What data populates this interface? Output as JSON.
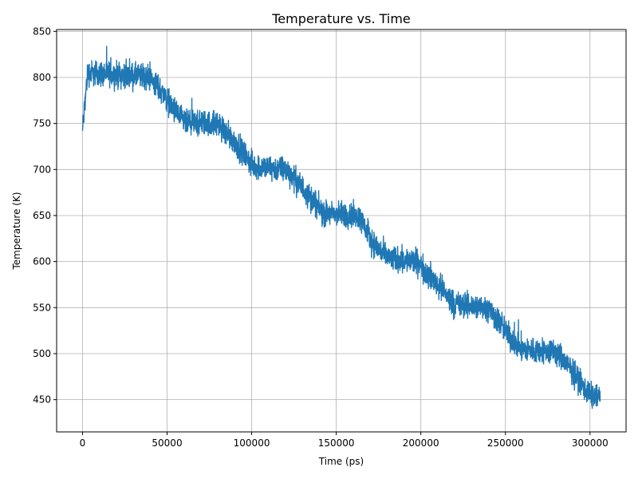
{
  "chart_data": {
    "type": "line",
    "title": "Temperature vs. Time",
    "xlabel": "Time (ps)",
    "ylabel": "Temperature (K)",
    "xlim": [
      -15300,
      321300
    ],
    "ylim": [
      415,
      852
    ],
    "grid": true,
    "x_ticks": [
      0,
      50000,
      100000,
      150000,
      200000,
      250000,
      300000
    ],
    "x_tick_labels": [
      "0",
      "50000",
      "100000",
      "150000",
      "200000",
      "250000",
      "300000"
    ],
    "y_ticks": [
      450,
      500,
      550,
      600,
      650,
      700,
      750,
      800,
      850
    ],
    "y_tick_labels": [
      "450",
      "500",
      "550",
      "600",
      "650",
      "700",
      "750",
      "800",
      "850"
    ],
    "series_color": "#1f77b4",
    "series": [
      {
        "mean_profile": {
          "x": [
            0,
            3000,
            20000,
            40000,
            42000,
            47000,
            50000,
            55000,
            60000,
            62000,
            80000,
            82000,
            90000,
            95000,
            100000,
            102000,
            120000,
            123000,
            130000,
            138000,
            140000,
            143000,
            162000,
            165000,
            170000,
            175000,
            180000,
            182000,
            198000,
            200000,
            210000,
            218000,
            220000,
            222000,
            240000,
            242000,
            250000,
            255000,
            260000,
            262000,
            278000,
            282000,
            290000,
            297000,
            300000,
            306000
          ],
          "y": [
            742,
            805,
            803,
            800,
            795,
            785,
            775,
            762,
            752,
            750,
            750,
            745,
            730,
            718,
            706,
            703,
            700,
            695,
            680,
            663,
            657,
            652,
            650,
            645,
            625,
            613,
            605,
            603,
            600,
            595,
            575,
            558,
            553,
            553,
            550,
            545,
            525,
            512,
            505,
            504,
            502,
            498,
            480,
            462,
            455,
            452
          ],
          "noise_amplitude_K": 12
        }
      }
    ]
  }
}
